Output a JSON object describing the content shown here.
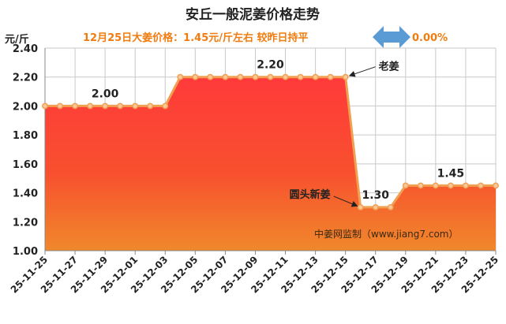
{
  "header": {
    "title": "安丘一般泥姜价格走势",
    "subtitle": "12月25日大姜价格：1.45元/斤左右    较昨日持平",
    "change": "0.00%"
  },
  "watermark": "中姜网监制（www.jiang7.com）",
  "colors": {
    "line": "#f0a050",
    "marker_fill": "#f7c89a",
    "area_top": "#ff3a3a",
    "area_bottom": "#f0882c",
    "arrow": "#5b9bd5",
    "accent_text": "#f07c10"
  },
  "chart_data": {
    "type": "area",
    "ylabel": "元/斤",
    "ylim": [
      1.0,
      2.4
    ],
    "yticks": [
      "1.00",
      "1.20",
      "1.40",
      "1.60",
      "1.80",
      "2.00",
      "2.20",
      "2.40"
    ],
    "grid": true,
    "x": [
      "25-11-25",
      "25-11-26",
      "25-11-27",
      "25-11-28",
      "25-11-29",
      "25-11-30",
      "25-12-01",
      "25-12-02",
      "25-12-03",
      "25-12-04",
      "25-12-05",
      "25-12-06",
      "25-12-07",
      "25-12-08",
      "25-12-09",
      "25-12-10",
      "25-12-11",
      "25-12-12",
      "25-12-13",
      "25-12-14",
      "25-12-15",
      "25-12-16",
      "25-12-17",
      "25-12-18",
      "25-12-19",
      "25-12-20",
      "25-12-21",
      "25-12-22",
      "25-12-23",
      "25-12-24",
      "25-12-25"
    ],
    "xtick_labels": [
      "25-11-25",
      "25-11-27",
      "25-11-29",
      "25-12-01",
      "25-12-03",
      "25-12-05",
      "25-12-07",
      "25-12-09",
      "25-12-11",
      "25-12-13",
      "25-12-15",
      "25-12-17",
      "25-12-19",
      "25-12-21",
      "25-12-23",
      "25-12-25"
    ],
    "values": [
      2.0,
      2.0,
      2.0,
      2.0,
      2.0,
      2.0,
      2.0,
      2.0,
      2.0,
      2.2,
      2.2,
      2.2,
      2.2,
      2.2,
      2.2,
      2.2,
      2.2,
      2.2,
      2.2,
      2.2,
      2.2,
      1.3,
      1.3,
      1.3,
      1.45,
      1.45,
      1.45,
      1.45,
      1.45,
      1.45,
      1.45
    ],
    "data_labels": [
      {
        "index": 4,
        "text": "2.00"
      },
      {
        "index": 15,
        "text": "2.20"
      },
      {
        "index": 22,
        "text": "1.30"
      },
      {
        "index": 27,
        "text": "1.45"
      }
    ],
    "annotations": [
      {
        "text": "老姜",
        "index": 20
      },
      {
        "text": "圆头新姜",
        "index": 21
      }
    ]
  }
}
